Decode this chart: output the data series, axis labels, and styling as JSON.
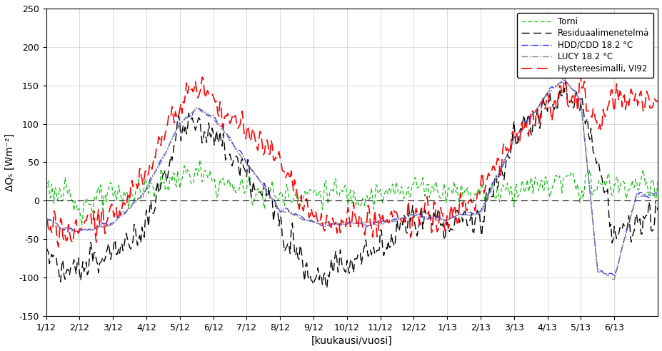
{
  "n": 550,
  "xtick_positions": [
    0,
    30,
    60,
    90,
    120,
    150,
    180,
    210,
    240,
    270,
    300,
    330,
    360,
    390,
    420,
    450,
    480,
    510
  ],
  "xtick_labels": [
    "1/12",
    "2/12",
    "3/12",
    "4/12",
    "5/12",
    "6/12",
    "7/12",
    "8/12",
    "9/12",
    "10/12",
    "11/12",
    "12/12",
    "1/13",
    "2/13",
    "3/13",
    "4/13",
    "5/13",
    "6/13"
  ],
  "ylabel": "ΔQₛ [Wm⁻²]",
  "xlabel": "[kuukausi/vuosi]",
  "ylim": [
    -150,
    250
  ],
  "yticks": [
    -150,
    -100,
    -50,
    0,
    50,
    100,
    150,
    200,
    250
  ],
  "legend_labels": [
    "Torni",
    "Residuaalimenetelmä",
    "HDD/CDD 18.2 °C",
    "LUCY 18.2 °C",
    "Hystereesimalli, VI92"
  ],
  "colors": {
    "torni": "#00bb00",
    "residual": "#000000",
    "hdd_cdd": "#3333ff",
    "lucy": "#888888",
    "hysteresis": "#ff0000"
  },
  "linewidths": {
    "torni": 0.8,
    "residual": 1.0,
    "hdd_cdd": 1.0,
    "lucy": 1.0,
    "hysteresis": 1.2
  },
  "keypoints_t": [
    0,
    15,
    30,
    60,
    90,
    120,
    135,
    150,
    165,
    180,
    200,
    210,
    240,
    270,
    300,
    330,
    360,
    390,
    420,
    450,
    465,
    480,
    495,
    510,
    530,
    549
  ],
  "keypoints_torni": [
    20,
    5,
    -5,
    5,
    15,
    30,
    35,
    25,
    20,
    15,
    10,
    5,
    10,
    10,
    5,
    20,
    15,
    10,
    15,
    20,
    25,
    20,
    20,
    20,
    20,
    20
  ],
  "keypoints_residual": [
    -60,
    -100,
    -90,
    -70,
    -30,
    90,
    100,
    80,
    60,
    30,
    0,
    -20,
    -100,
    -80,
    -60,
    -20,
    -30,
    -20,
    80,
    130,
    140,
    120,
    60,
    -50,
    -30,
    -20
  ],
  "keypoints_hdd_cdd": [
    -25,
    -35,
    -40,
    -30,
    15,
    100,
    120,
    110,
    80,
    50,
    10,
    -10,
    -30,
    -30,
    -30,
    -20,
    -25,
    -15,
    80,
    140,
    160,
    130,
    -90,
    -100,
    10,
    10
  ],
  "keypoints_lucy": [
    -25,
    -35,
    -40,
    -30,
    15,
    100,
    120,
    108,
    78,
    48,
    8,
    -12,
    -30,
    -30,
    -30,
    -20,
    -25,
    -15,
    78,
    138,
    158,
    128,
    -92,
    -102,
    8,
    8
  ],
  "keypoints_hysteresis": [
    -30,
    -35,
    -35,
    -25,
    35,
    130,
    150,
    130,
    110,
    90,
    65,
    55,
    -25,
    -30,
    -25,
    -20,
    -25,
    10,
    80,
    130,
    145,
    145,
    90,
    130,
    130,
    130
  ],
  "noise_torni": {
    "std": 12,
    "smooth": 2
  },
  "noise_residual": {
    "std": 15,
    "smooth": 2
  },
  "noise_hdd_cdd": {
    "std": 5,
    "smooth": 6
  },
  "noise_lucy": {
    "std": 4,
    "smooth": 7
  },
  "noise_hysteresis": {
    "std": 14,
    "smooth": 2
  },
  "grid_color": "#cccccc",
  "background_color": "#ffffff",
  "legend_fontsize": 8.5,
  "axis_fontsize": 10,
  "tick_fontsize": 9
}
